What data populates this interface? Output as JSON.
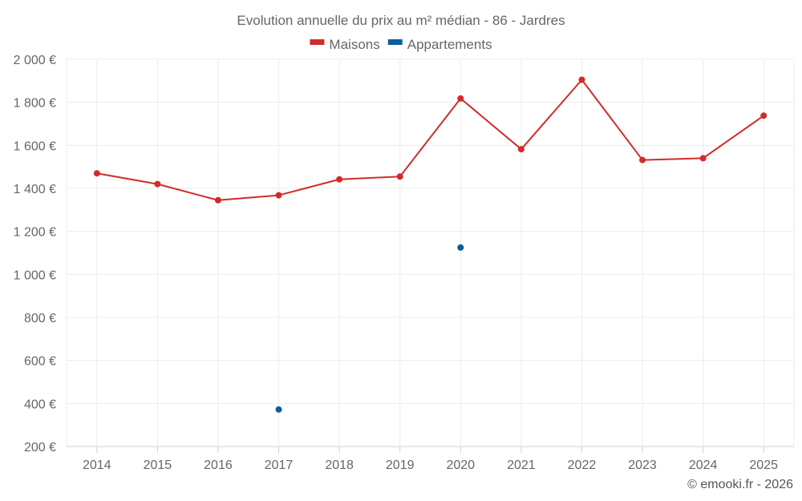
{
  "chart_data": {
    "type": "line",
    "title": "Evolution annuelle du prix au m² médian - 86 - Jardres",
    "categories": [
      "2014",
      "2015",
      "2016",
      "2017",
      "2018",
      "2019",
      "2020",
      "2021",
      "2022",
      "2023",
      "2024",
      "2025"
    ],
    "ylim": [
      200,
      2000
    ],
    "yticks": [
      200,
      400,
      600,
      800,
      1000,
      1200,
      1400,
      1600,
      1800,
      2000
    ],
    "ytick_labels": [
      "200 €",
      "400 €",
      "600 €",
      "800 €",
      "1 000 €",
      "1 200 €",
      "1 400 €",
      "1 600 €",
      "1 800 €",
      "2 000 €"
    ],
    "series": [
      {
        "name": "Maisons",
        "color": "#d22b2b",
        "values": [
          1470,
          1420,
          1345,
          1368,
          1442,
          1455,
          1818,
          1582,
          1905,
          1532,
          1540,
          1738
        ]
      },
      {
        "name": "Appartements",
        "color": "#0a5f9a",
        "values": [
          null,
          null,
          null,
          372,
          null,
          null,
          1125,
          null,
          null,
          null,
          null,
          null
        ]
      }
    ],
    "xlabel": "",
    "ylabel": "",
    "grid": true,
    "legend_position": "top-center"
  },
  "footer": {
    "copyright": "© emooki.fr - 2026"
  }
}
